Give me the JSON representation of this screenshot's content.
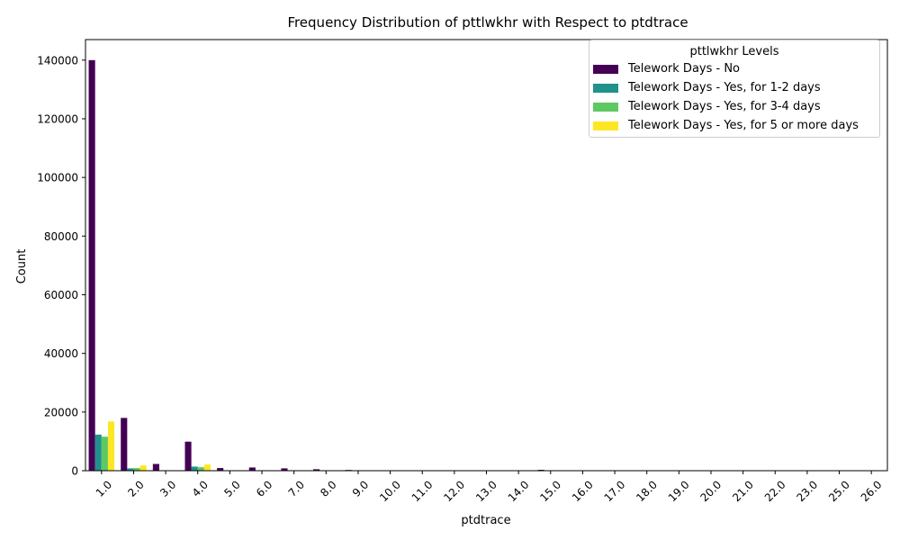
{
  "chart_data": {
    "type": "bar",
    "title": "Frequency Distribution of pttlwkhr with Respect to ptdtrace",
    "xlabel": "ptdtrace",
    "ylabel": "Count",
    "ylim": [
      0,
      147000
    ],
    "yticks": [
      0,
      20000,
      40000,
      60000,
      80000,
      100000,
      120000,
      140000
    ],
    "legend_title": "pttlwkhr Levels",
    "legend_position": "upper-right",
    "categories": [
      "1.0",
      "2.0",
      "3.0",
      "4.0",
      "5.0",
      "6.0",
      "7.0",
      "8.0",
      "9.0",
      "10.0",
      "11.0",
      "12.0",
      "13.0",
      "14.0",
      "15.0",
      "16.0",
      "17.0",
      "18.0",
      "19.0",
      "20.0",
      "21.0",
      "22.0",
      "23.0",
      "25.0",
      "26.0"
    ],
    "series": [
      {
        "name": "Telework Days - No",
        "color": "#440154",
        "values": [
          140000,
          18000,
          2300,
          9900,
          900,
          1100,
          800,
          500,
          250,
          80,
          60,
          50,
          40,
          60,
          300,
          40,
          30,
          20,
          20,
          15,
          10,
          10,
          10,
          10,
          10
        ]
      },
      {
        "name": "Telework Days - Yes, for 1-2 days",
        "color": "#21918c",
        "values": [
          12300,
          800,
          100,
          1400,
          50,
          60,
          40,
          30,
          20,
          5,
          5,
          5,
          5,
          5,
          20,
          5,
          5,
          0,
          0,
          0,
          0,
          0,
          0,
          0,
          0
        ]
      },
      {
        "name": "Telework Days - Yes, for 3-4 days",
        "color": "#5ec962",
        "values": [
          11600,
          900,
          100,
          1200,
          50,
          60,
          40,
          30,
          20,
          5,
          5,
          5,
          5,
          5,
          20,
          5,
          5,
          0,
          0,
          0,
          0,
          0,
          0,
          0,
          0
        ]
      },
      {
        "name": "Telework Days - Yes, for 5 or more days",
        "color": "#fde725",
        "values": [
          16800,
          1800,
          150,
          2100,
          80,
          100,
          60,
          40,
          30,
          10,
          5,
          5,
          5,
          5,
          30,
          5,
          5,
          0,
          0,
          0,
          0,
          0,
          0,
          0,
          0
        ]
      }
    ]
  }
}
